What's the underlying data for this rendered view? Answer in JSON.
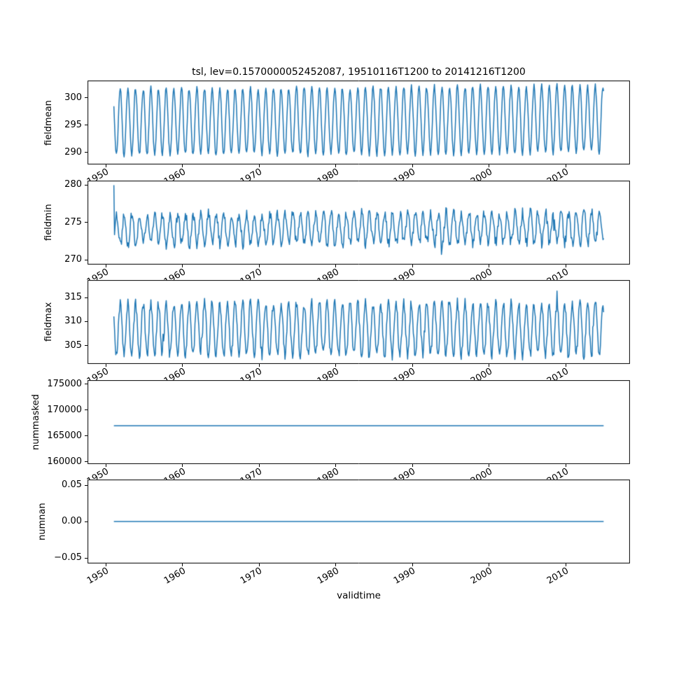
{
  "figure": {
    "title": "tsl, lev=0.1570000052452087, 19510116T1200 to 20141216T1200",
    "xlabel": "validtime",
    "background": "#ffffff",
    "line_color": "#1f77b4",
    "frame_color": "#000000"
  },
  "chart_data": {
    "type": "line",
    "title": "tsl, lev=0.1570000052452087, 19510116T1200 to 20141216T1200",
    "xlabel": "validtime",
    "grid": false,
    "legend": "none",
    "x_start": 1951.042,
    "x_end": 2014.958,
    "samples_per_year": 12,
    "xlim": [
      1947.6,
      2018.4
    ],
    "x_ticks": [
      1950,
      1960,
      1970,
      1980,
      1990,
      2000,
      2010
    ],
    "x_tick_labels": [
      "1950",
      "1960",
      "1970",
      "1980",
      "1990",
      "2000",
      "2010"
    ],
    "subplots": [
      {
        "ylabel": "fieldmean",
        "ylim": [
          287.8,
          303.2
        ],
        "yticks": [
          290,
          295,
          300
        ],
        "ytick_labels": [
          "290",
          "295",
          "300"
        ],
        "pattern": "seasonal",
        "base": 295.6,
        "amplitude": 6.1,
        "noise": 0.5,
        "trend_per_year": 0.008,
        "phase": 0.62,
        "seed": 11
      },
      {
        "ylabel": "fieldmin",
        "ylim": [
          269.4,
          280.6
        ],
        "yticks": [
          270,
          275,
          280
        ],
        "ytick_labels": [
          "270",
          "275",
          "280"
        ],
        "pattern": "seasonal",
        "base": 274.1,
        "amplitude": 2.0,
        "noise": 0.75,
        "trend_per_year": 0.004,
        "phase": 0.15,
        "seed": 22,
        "first_value": 280,
        "dip_chance": 0.006,
        "dip_size": 2.2
      },
      {
        "ylabel": "fieldmax",
        "ylim": [
          301.2,
          318.6
        ],
        "yticks": [
          305,
          310,
          315
        ],
        "ytick_labels": [
          "305",
          "310",
          "315"
        ],
        "pattern": "seasonal",
        "base": 308.4,
        "amplitude": 5.4,
        "noise": 1.1,
        "trend_per_year": 0.0,
        "phase": 0.62,
        "seed": 33,
        "spike_chance": 0.008,
        "spike_size": 2.5
      },
      {
        "ylabel": "nummasked",
        "ylim": [
          159600,
          175800
        ],
        "yticks": [
          160000,
          165000,
          170000,
          175000
        ],
        "ytick_labels": [
          "160000",
          "165000",
          "170000",
          "175000"
        ],
        "pattern": "constant",
        "value": 167000,
        "seed": 44
      },
      {
        "ylabel": "numnan",
        "ylim": [
          -0.0577,
          0.0577
        ],
        "yticks": [
          -0.05,
          0,
          0.05
        ],
        "ytick_labels": [
          "−0.05",
          "0.00",
          "0.05"
        ],
        "pattern": "constant",
        "value": 0,
        "seed": 55
      }
    ]
  }
}
